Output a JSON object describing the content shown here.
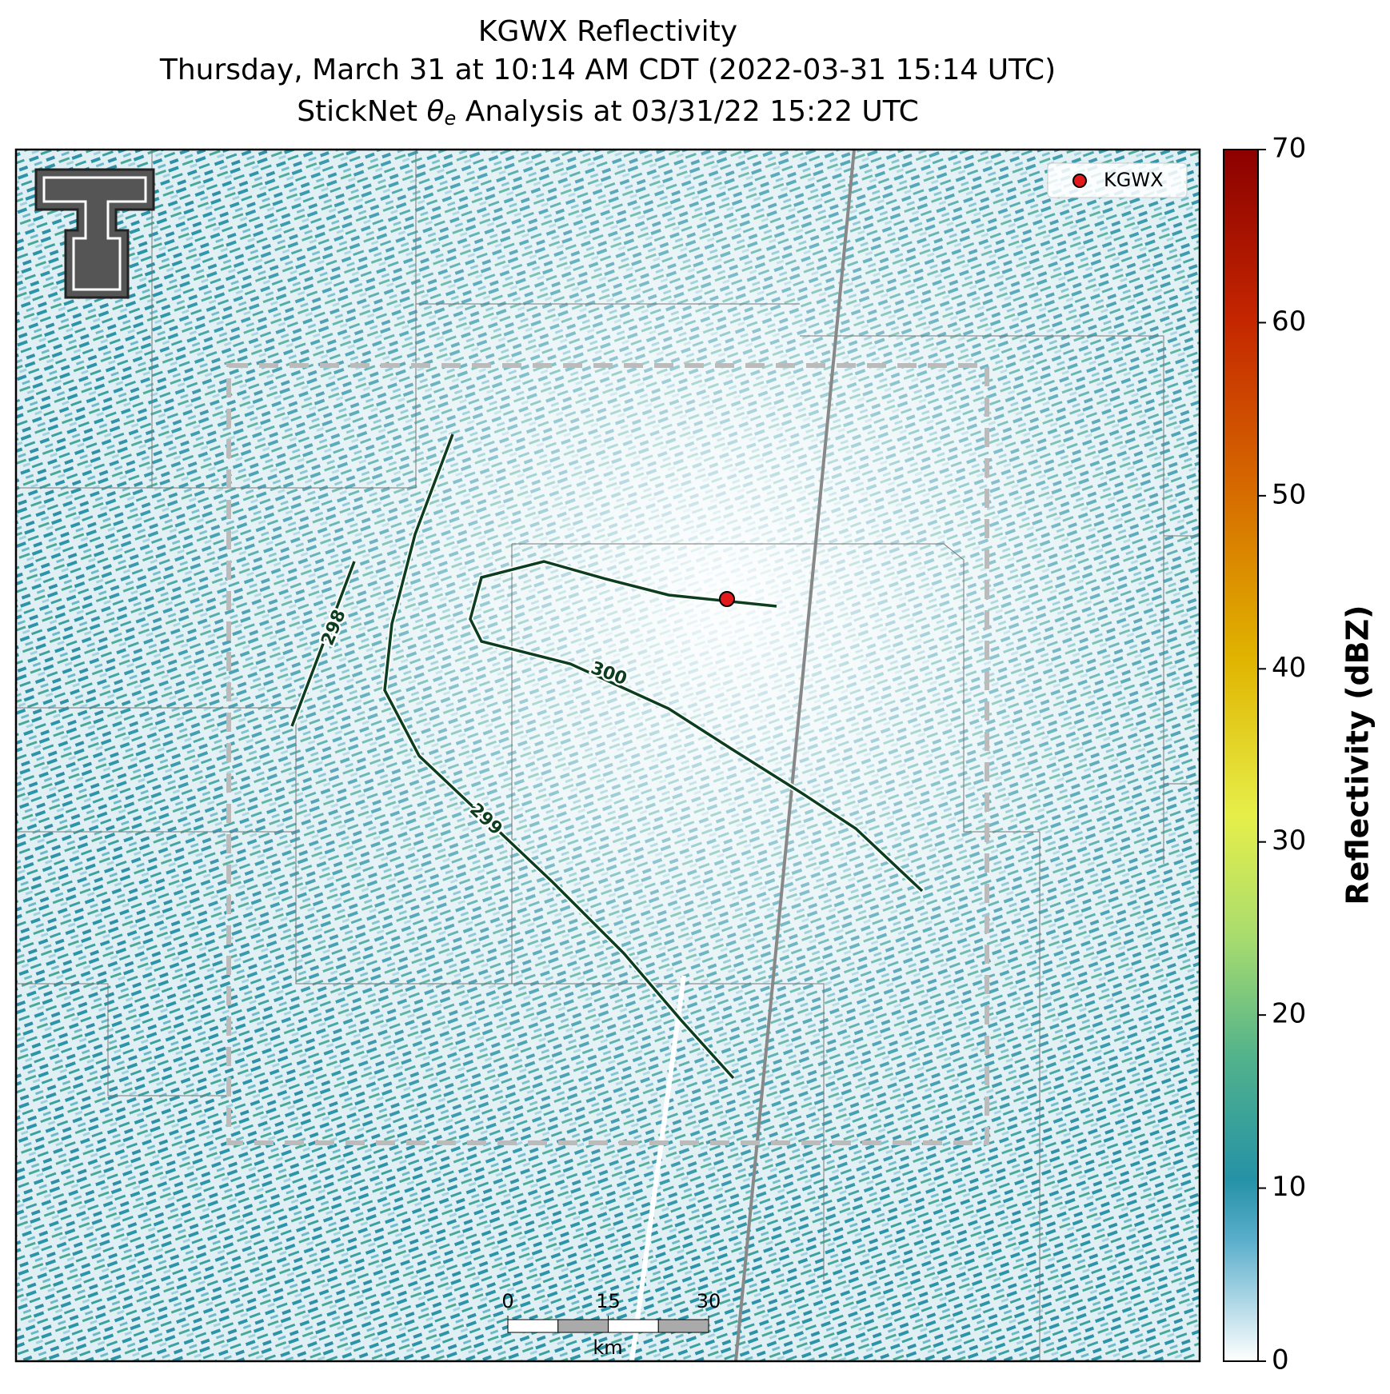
{
  "title": {
    "line1": "KGWX Reflectivity",
    "line2": "Thursday, March 31 at 10:14 AM CDT (2022-03-31 15:14 UTC)",
    "line3_prefix": "StickNet ",
    "line3_symbol": "θ",
    "line3_subscript": "e",
    "line3_suffix": " Analysis at 03/31/22 15:22 UTC"
  },
  "legend": {
    "label": "KGWX"
  },
  "contours": [
    {
      "label": "298"
    },
    {
      "label": "299"
    },
    {
      "label": "300"
    }
  ],
  "scale_bar": {
    "ticks": [
      0,
      15,
      30
    ],
    "unit": "km"
  },
  "colorbar": {
    "label": "Reflectivity (dBZ)",
    "lim": [
      0,
      70
    ],
    "ticks": [
      0,
      10,
      20,
      30,
      40,
      50,
      60,
      70
    ]
  }
}
